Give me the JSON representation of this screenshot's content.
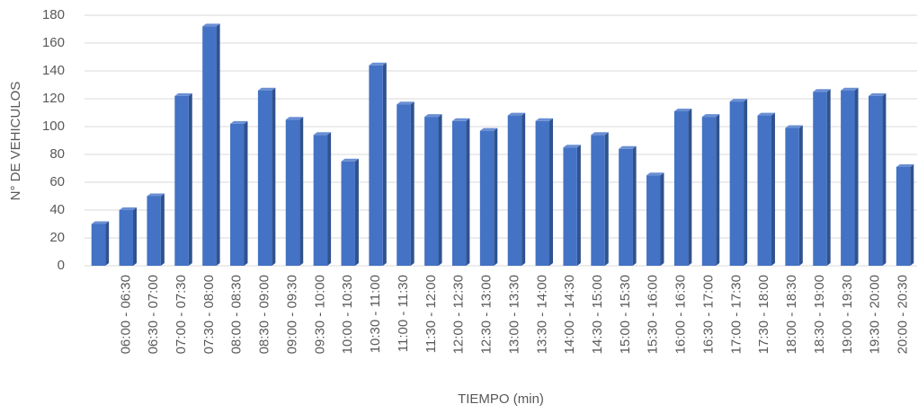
{
  "chart_data": {
    "type": "bar",
    "x_label": "TIEMPO (min)",
    "y_label": "N° DE VEHICULOS",
    "categories": [
      null,
      "06:00 - 06:30",
      "06:30 - 07:00",
      "07:00 - 07:30",
      "07:30 - 08:00",
      "08:00 - 08:30",
      "08:30 - 09:00",
      "09:00 - 09:30",
      "09:30 - 10:00",
      "10:00 - 10:30",
      "10:30 - 11:00",
      "11:00 - 11:30",
      "11:30 - 12:00",
      "12:00 - 12:30",
      "12:30 - 13:00",
      "13:00 - 13:30",
      "13:30 - 14:00",
      "14:00 - 14:30",
      "14:30 - 15:00",
      "15:00 - 15:30",
      "15:30 - 16:00",
      "16:00 - 16:30",
      "16:30 - 17:00",
      "17:00 - 17:30",
      "17:30 - 18:00",
      "18:00 - 18:30",
      "18:30 - 19:00",
      "19:00 - 19:30",
      "19:30 - 20:00",
      "20:00 - 20:30"
    ],
    "values": [
      30,
      40,
      50,
      122,
      172,
      102,
      126,
      105,
      94,
      75,
      144,
      116,
      107,
      104,
      97,
      108,
      104,
      85,
      94,
      84,
      65,
      111,
      107,
      118,
      108,
      99,
      125,
      126,
      122,
      71
    ],
    "color": "#4472c4",
    "ylim": [
      0,
      180
    ],
    "yticks": [
      0,
      20,
      40,
      60,
      80,
      100,
      120,
      140,
      160,
      180
    ],
    "grid": true
  }
}
